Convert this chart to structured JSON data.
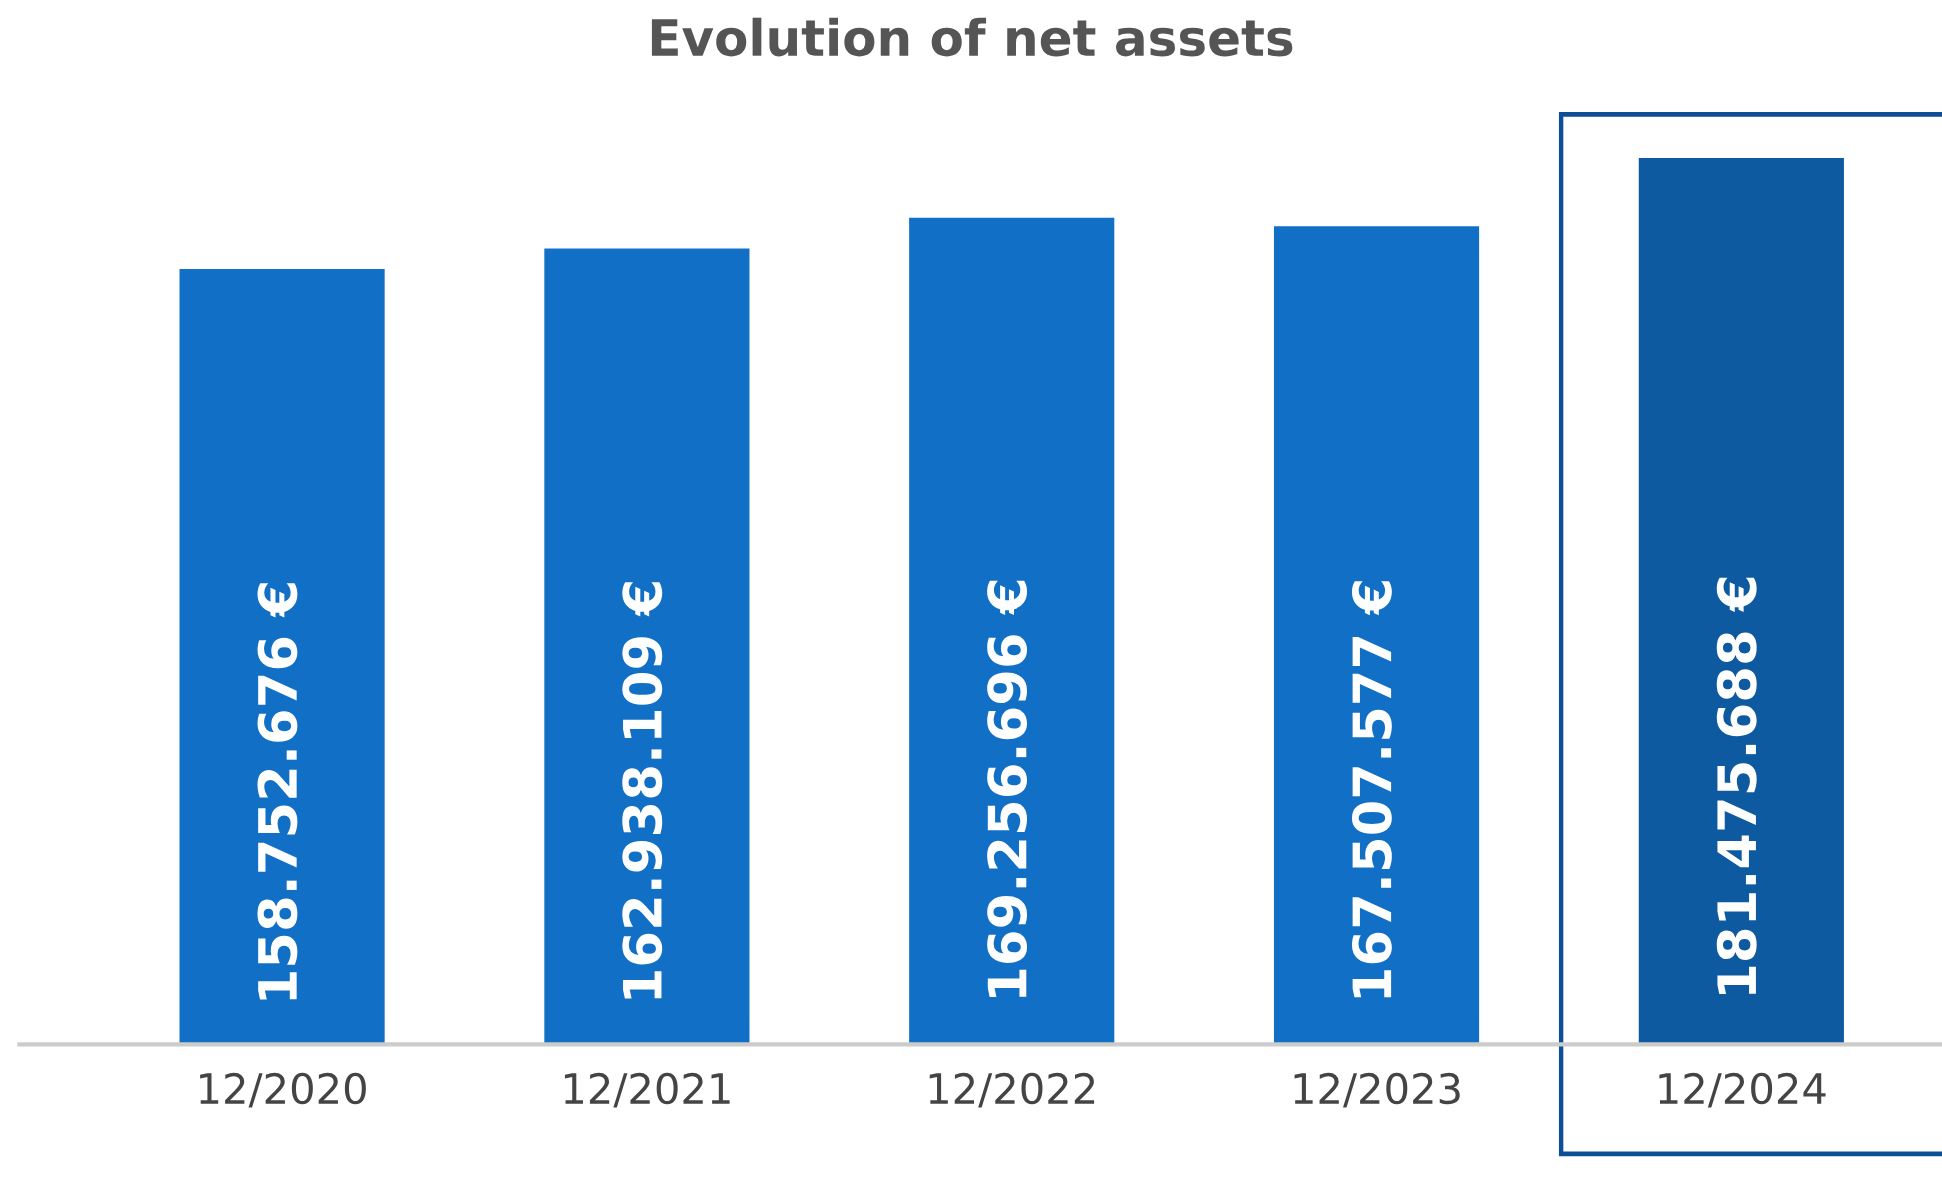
{
  "chart_data": {
    "type": "bar",
    "title": "Evolution of net assets",
    "categories": [
      "12/2020",
      "12/2021",
      "12/2022",
      "12/2023",
      "12/2024"
    ],
    "values": [
      158752676,
      162938109,
      169256696,
      167507577,
      181475688
    ],
    "value_labels": [
      "158.752.676 €",
      "162.938.109 €",
      "169.256.696 €",
      "167.507.577 €",
      "181.475.688 €"
    ],
    "colors": [
      "#1170c6",
      "#1170c6",
      "#1170c6",
      "#1170c6",
      "#0d5aa0"
    ],
    "tick_labels": "x",
    "grid": false,
    "legend": false
  }
}
